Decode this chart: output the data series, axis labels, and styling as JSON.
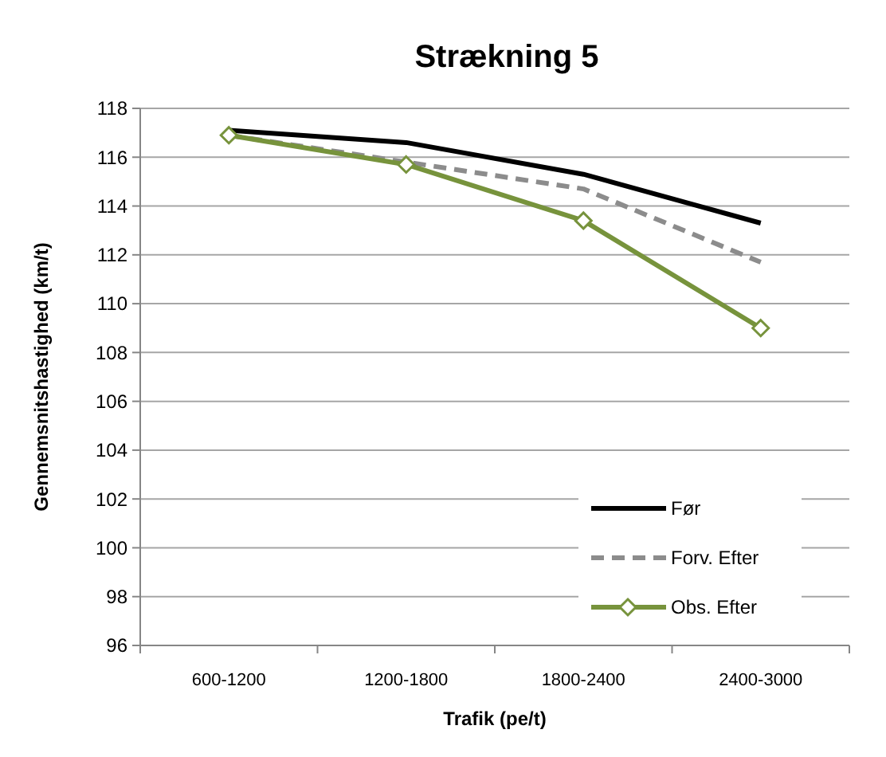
{
  "chart_data": {
    "type": "line",
    "title": "Strækning 5",
    "xlabel": "Trafik (pe/t)",
    "ylabel": "Gennemsnitshastighed (km/t)",
    "categories": [
      "600-1200",
      "1200-1800",
      "1800-2400",
      "2400-3000"
    ],
    "series": [
      {
        "name": "Før",
        "color": "#000000",
        "values": [
          117.1,
          116.6,
          115.3,
          113.3
        ],
        "marker": "none",
        "line_style": "solid"
      },
      {
        "name": "Forv. Efter",
        "color": "#8c8c8c",
        "values": [
          116.9,
          115.8,
          114.7,
          111.7
        ],
        "marker": "none",
        "line_style": "dashed"
      },
      {
        "name": "Obs. Efter",
        "color": "#77933c",
        "values": [
          116.9,
          115.7,
          113.4,
          109.0
        ],
        "marker": "diamond",
        "line_style": "solid"
      }
    ],
    "ylim": [
      96,
      118
    ],
    "yticks": [
      96,
      98,
      100,
      102,
      104,
      106,
      108,
      110,
      112,
      114,
      116,
      118
    ],
    "grid": "y",
    "legend": "bottom right"
  }
}
